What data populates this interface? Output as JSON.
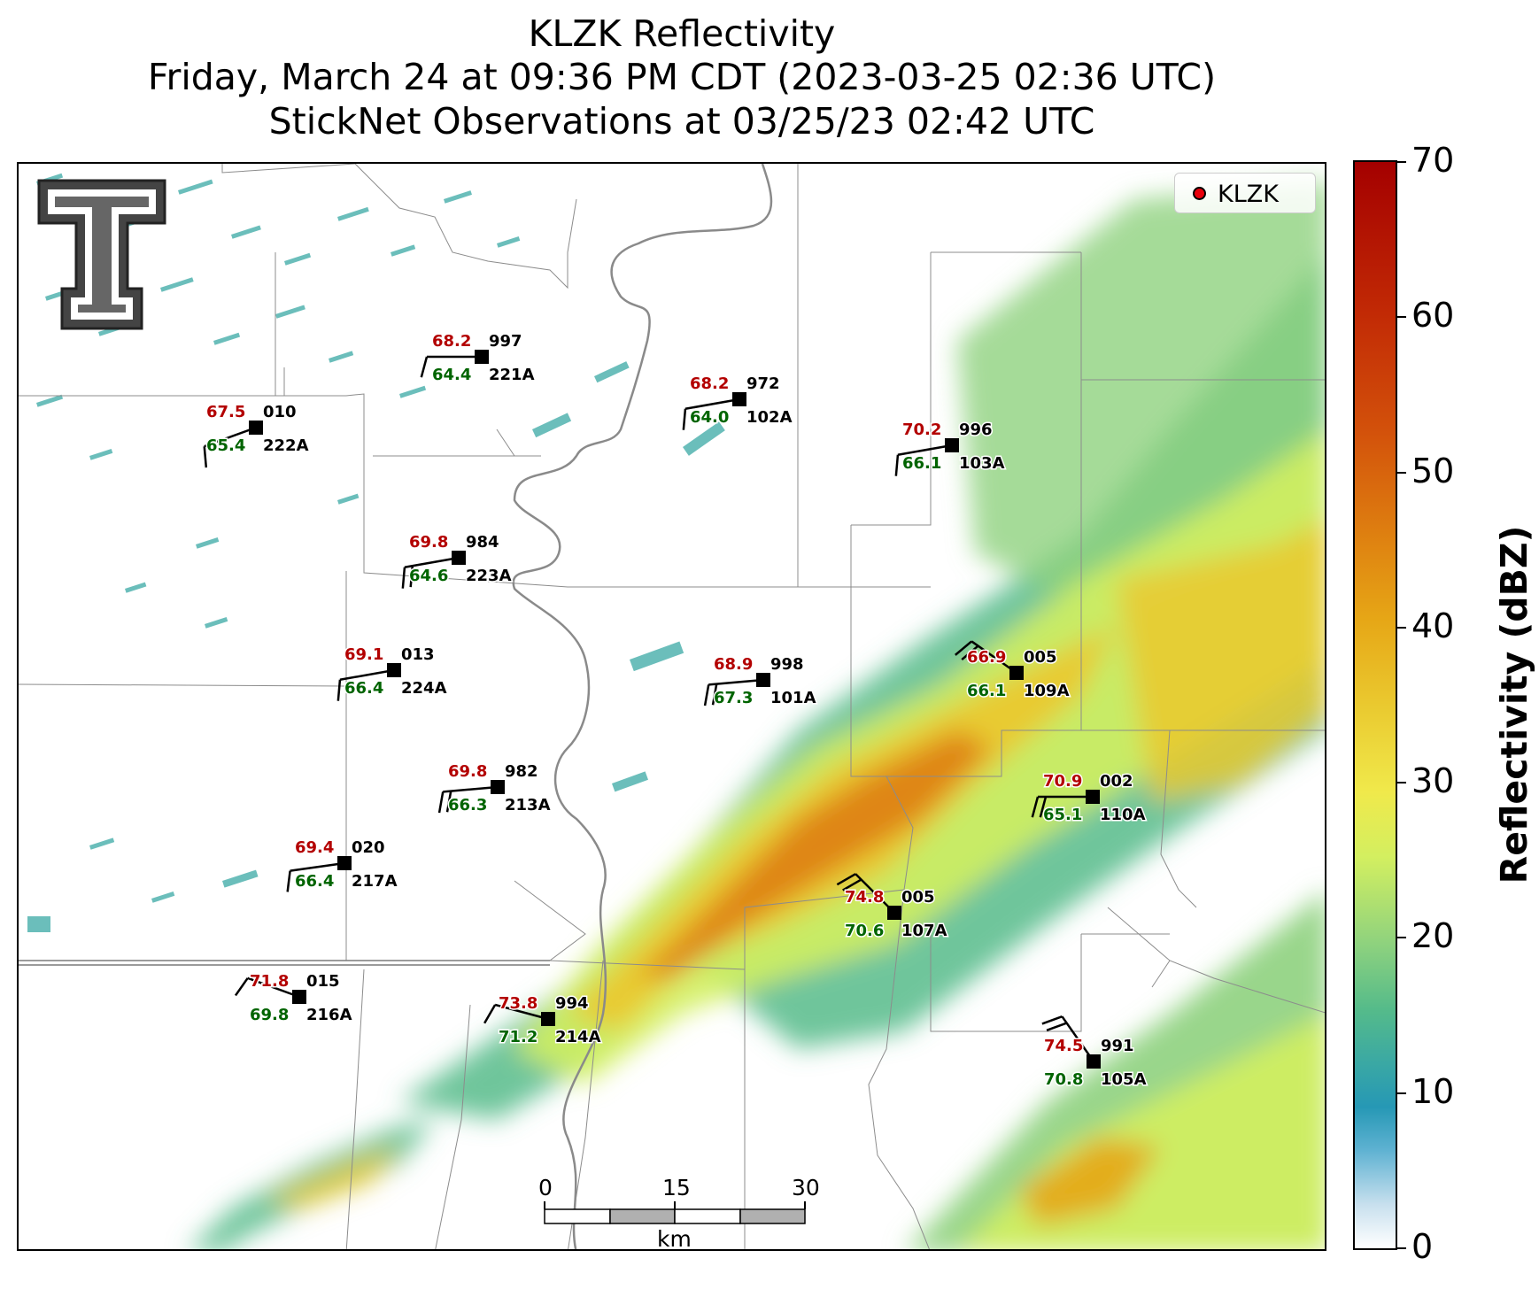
{
  "title": {
    "line1": "KLZK Reflectivity",
    "line2": "Friday, March 24 at 09:36 PM CDT (2023-03-25 02:36 UTC)",
    "line3": "StickNet Observations at 03/25/23 02:42 UTC"
  },
  "legend": {
    "label": "KLZK",
    "marker_color": "#e8000b"
  },
  "logo": {
    "icon": "texas-tech-double-t-logo"
  },
  "colorbar": {
    "label": "Reflectivity (dBZ)",
    "range": [
      0,
      70
    ],
    "ticks": [
      "0",
      "10",
      "20",
      "30",
      "40",
      "50",
      "60",
      "70"
    ],
    "colors": [
      "#ffffff",
      "#2698b5",
      "#8ed27e",
      "#f0e94b",
      "#e6a616",
      "#d3520b",
      "#a40000"
    ]
  },
  "scale_bar": {
    "labels": [
      "0",
      "15",
      "30"
    ],
    "unit": "km"
  },
  "stations": [
    {
      "id": "221A",
      "temp": "68.2",
      "dew": "64.4",
      "pressure": "997"
    },
    {
      "id": "222A",
      "temp": "67.5",
      "dew": "65.4",
      "pressure": "010"
    },
    {
      "id": "102A",
      "temp": "68.2",
      "dew": "64.0",
      "pressure": "972"
    },
    {
      "id": "103A",
      "temp": "70.2",
      "dew": "66.1",
      "pressure": "996"
    },
    {
      "id": "223A",
      "temp": "69.8",
      "dew": "64.6",
      "pressure": "984"
    },
    {
      "id": "224A",
      "temp": "69.1",
      "dew": "66.4",
      "pressure": "013"
    },
    {
      "id": "101A",
      "temp": "68.9",
      "dew": "67.3",
      "pressure": "998"
    },
    {
      "id": "109A",
      "temp": "66.9",
      "dew": "66.1",
      "pressure": "005"
    },
    {
      "id": "213A",
      "temp": "69.8",
      "dew": "66.3",
      "pressure": "982"
    },
    {
      "id": "110A",
      "temp": "70.9",
      "dew": "65.1",
      "pressure": "002"
    },
    {
      "id": "217A",
      "temp": "69.4",
      "dew": "66.4",
      "pressure": "020"
    },
    {
      "id": "107A",
      "temp": "74.8",
      "dew": "70.6",
      "pressure": "005"
    },
    {
      "id": "216A",
      "temp": "71.8",
      "dew": "69.8",
      "pressure": "015"
    },
    {
      "id": "214A",
      "temp": "73.8",
      "dew": "71.2",
      "pressure": "994"
    },
    {
      "id": "105A",
      "temp": "74.5",
      "dew": "70.8",
      "pressure": "991"
    }
  ]
}
